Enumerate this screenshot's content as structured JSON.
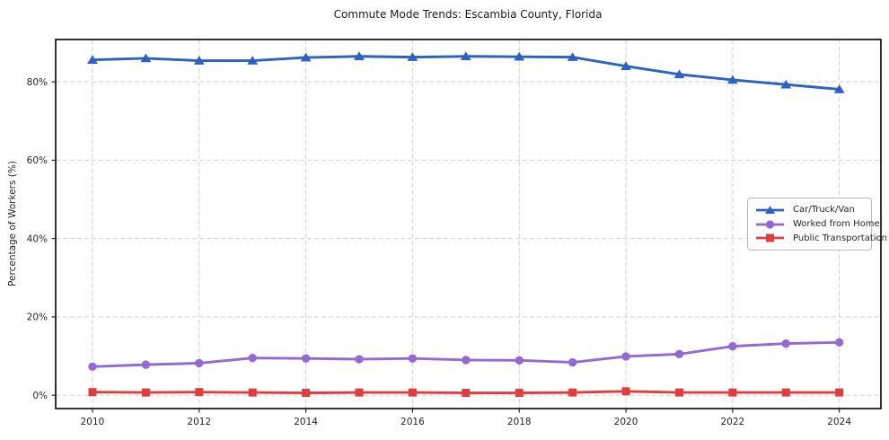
{
  "figure": {
    "background_color": "#ffffff",
    "grid_color": "#d0d0d0",
    "spine_color": "#000000",
    "tick_label_color": "#262626"
  },
  "chart_data": {
    "type": "line",
    "title": "Commute Mode Trends: Escambia County, Florida",
    "xlabel": "",
    "ylabel": "Percentage of Workers (%)",
    "x": [
      2010,
      2011,
      2012,
      2013,
      2014,
      2015,
      2016,
      2017,
      2018,
      2019,
      2020,
      2021,
      2022,
      2023,
      2024
    ],
    "series": [
      {
        "name": "Car/Truck/Van",
        "color": "#2b62c3",
        "marker": "triangle",
        "values": [
          85.6,
          86.0,
          85.4,
          85.4,
          86.2,
          86.5,
          86.3,
          86.5,
          86.4,
          86.3,
          84.0,
          81.9,
          80.5,
          79.3,
          78.1
        ]
      },
      {
        "name": "Worked from Home",
        "color": "#9569d3",
        "marker": "circle",
        "values": [
          7.3,
          7.8,
          8.2,
          9.5,
          9.4,
          9.2,
          9.4,
          9.0,
          8.9,
          8.4,
          9.9,
          10.5,
          12.5,
          13.2,
          13.5
        ]
      },
      {
        "name": "Public Transportation",
        "color": "#e03e3e",
        "marker": "square",
        "values": [
          0.8,
          0.7,
          0.8,
          0.7,
          0.6,
          0.7,
          0.7,
          0.6,
          0.6,
          0.7,
          1.0,
          0.7,
          0.7,
          0.7,
          0.7
        ]
      }
    ],
    "x_ticks": [
      2010,
      2012,
      2014,
      2016,
      2018,
      2020,
      2022,
      2024
    ],
    "y_ticks": [
      0,
      20,
      40,
      60,
      80
    ],
    "y_tick_suffix": "%",
    "xlim": [
      2009.31,
      2024.78
    ],
    "ylim": [
      -3.4,
      90.8
    ],
    "grid": true,
    "legend_position": "center-right"
  }
}
